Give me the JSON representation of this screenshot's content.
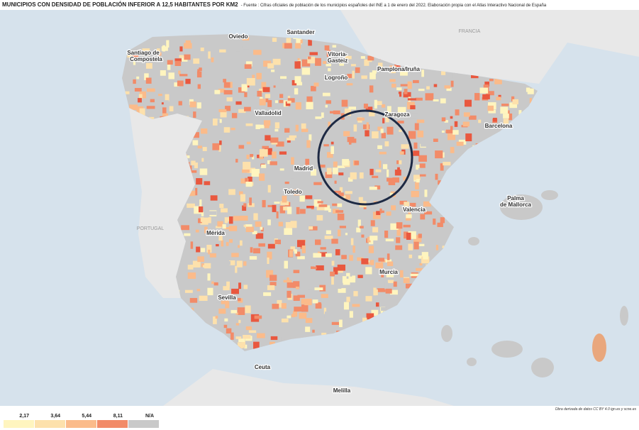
{
  "header": {
    "title": "MUNICIPIOS CON DENSIDAD DE POBLACIÓN INFERIOR A 12,5 HABITANTES POR KM2",
    "source": "- Fuente : Cifras oficiales de población de los municipios españoles del INE a 1 de enero del 2022. Elaboración propia con el Atlas Interactivo Nacional de España"
  },
  "countries": [
    "FRANCIA",
    "PORTUGAL"
  ],
  "cities": [
    "Oviedo",
    "Santander",
    "Santiago de",
    "Compostela",
    "Vitoria-",
    "Gasteiz",
    "Logroño",
    "Pamplona/Iruña",
    "Zaragoza",
    "Barcelona",
    "Valladolid",
    "Madrid",
    "Toledo",
    "Valencia",
    "Palma",
    "de Mallorca",
    "Mérida",
    "Murcia",
    "Sevilla",
    "Ceuta",
    "Melilla"
  ],
  "attribution": "Obra derivada de datos CC BY 4.0 ign.es y scne.es",
  "legend": [
    {
      "label": "2,17",
      "color": "#fff5bf"
    },
    {
      "label": "3,64",
      "color": "#fde1ac"
    },
    {
      "label": "5,44",
      "color": "#fbbb8a"
    },
    {
      "label": "8,11",
      "color": "#f28b68"
    },
    {
      "label": "N/A",
      "color": "#c9c9c9"
    }
  ]
}
